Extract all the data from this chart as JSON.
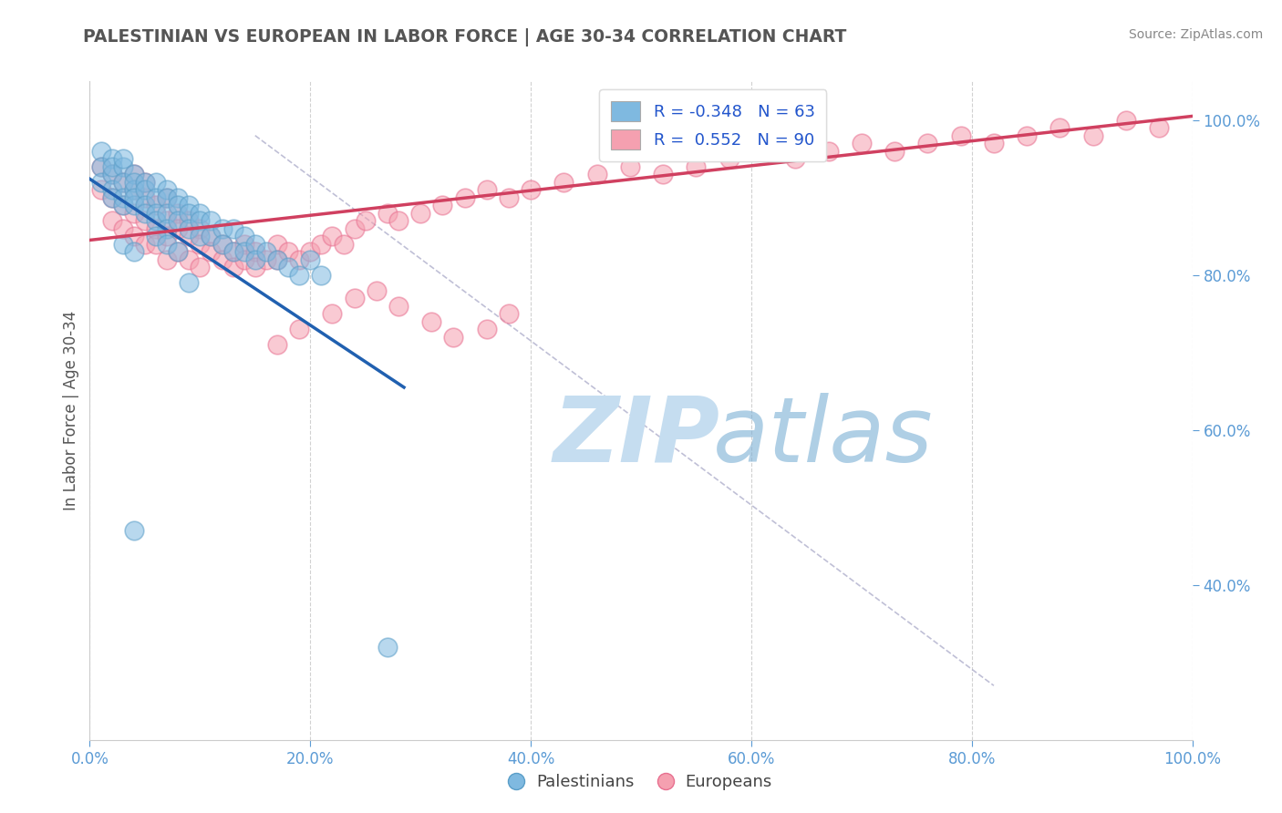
{
  "title": "PALESTINIAN VS EUROPEAN IN LABOR FORCE | AGE 30-34 CORRELATION CHART",
  "source": "Source: ZipAtlas.com",
  "ylabel": "In Labor Force | Age 30-34",
  "xlim": [
    0.0,
    1.0
  ],
  "ylim": [
    0.2,
    1.05
  ],
  "yticks": [
    0.4,
    0.6,
    0.8,
    1.0
  ],
  "xticks": [
    0.0,
    0.2,
    0.4,
    0.6,
    0.8,
    1.0
  ],
  "blue_label": "Palestinians",
  "pink_label": "Europeans",
  "blue_R": -0.348,
  "blue_N": 63,
  "pink_R": 0.552,
  "pink_N": 90,
  "blue_color": "#7fb9e0",
  "pink_color": "#f5a0b0",
  "blue_edge_color": "#5a9ec8",
  "pink_edge_color": "#e87090",
  "blue_line_color": "#2060b0",
  "pink_line_color": "#d04060",
  "title_color": "#555555",
  "grid_color": "#cccccc",
  "tick_label_color": "#5b9bd5",
  "diag_color": "#b0b0cc",
  "blue_line_x": [
    0.0,
    0.285
  ],
  "blue_line_y": [
    0.924,
    0.655
  ],
  "pink_line_x": [
    0.0,
    1.0
  ],
  "pink_line_y": [
    0.845,
    1.005
  ],
  "diag_line_x": [
    0.15,
    0.82
  ],
  "diag_line_y": [
    0.98,
    0.27
  ],
  "blue_pts_x": [
    0.01,
    0.01,
    0.01,
    0.02,
    0.02,
    0.02,
    0.02,
    0.02,
    0.03,
    0.03,
    0.03,
    0.03,
    0.03,
    0.04,
    0.04,
    0.04,
    0.04,
    0.04,
    0.05,
    0.05,
    0.05,
    0.05,
    0.06,
    0.06,
    0.06,
    0.06,
    0.07,
    0.07,
    0.07,
    0.07,
    0.08,
    0.08,
    0.08,
    0.09,
    0.09,
    0.09,
    0.1,
    0.1,
    0.1,
    0.11,
    0.11,
    0.12,
    0.12,
    0.13,
    0.13,
    0.14,
    0.14,
    0.15,
    0.15,
    0.16,
    0.17,
    0.18,
    0.19,
    0.2,
    0.21,
    0.03,
    0.04,
    0.06,
    0.07,
    0.08,
    0.04,
    0.09,
    0.27
  ],
  "blue_pts_y": [
    0.96,
    0.94,
    0.92,
    0.95,
    0.93,
    0.91,
    0.9,
    0.94,
    0.94,
    0.92,
    0.9,
    0.89,
    0.95,
    0.93,
    0.91,
    0.89,
    0.92,
    0.9,
    0.92,
    0.91,
    0.89,
    0.88,
    0.92,
    0.9,
    0.88,
    0.87,
    0.91,
    0.9,
    0.88,
    0.86,
    0.9,
    0.89,
    0.87,
    0.89,
    0.88,
    0.86,
    0.88,
    0.87,
    0.85,
    0.87,
    0.85,
    0.86,
    0.84,
    0.86,
    0.83,
    0.85,
    0.83,
    0.84,
    0.82,
    0.83,
    0.82,
    0.81,
    0.8,
    0.82,
    0.8,
    0.84,
    0.83,
    0.85,
    0.84,
    0.83,
    0.47,
    0.79,
    0.32
  ],
  "pink_pts_x": [
    0.01,
    0.01,
    0.02,
    0.02,
    0.02,
    0.03,
    0.03,
    0.03,
    0.04,
    0.04,
    0.04,
    0.04,
    0.05,
    0.05,
    0.05,
    0.05,
    0.06,
    0.06,
    0.06,
    0.07,
    0.07,
    0.07,
    0.07,
    0.08,
    0.08,
    0.08,
    0.09,
    0.09,
    0.09,
    0.1,
    0.1,
    0.1,
    0.11,
    0.11,
    0.12,
    0.12,
    0.13,
    0.13,
    0.14,
    0.14,
    0.15,
    0.15,
    0.16,
    0.17,
    0.17,
    0.18,
    0.19,
    0.2,
    0.21,
    0.22,
    0.23,
    0.24,
    0.25,
    0.27,
    0.28,
    0.3,
    0.32,
    0.34,
    0.36,
    0.38,
    0.4,
    0.43,
    0.46,
    0.49,
    0.52,
    0.55,
    0.58,
    0.61,
    0.64,
    0.67,
    0.7,
    0.73,
    0.76,
    0.79,
    0.82,
    0.85,
    0.88,
    0.91,
    0.94,
    0.97,
    0.17,
    0.19,
    0.22,
    0.24,
    0.26,
    0.28,
    0.31,
    0.33,
    0.36,
    0.38
  ],
  "pink_pts_y": [
    0.94,
    0.91,
    0.93,
    0.9,
    0.87,
    0.92,
    0.89,
    0.86,
    0.91,
    0.88,
    0.85,
    0.93,
    0.9,
    0.87,
    0.84,
    0.92,
    0.89,
    0.86,
    0.84,
    0.9,
    0.87,
    0.85,
    0.82,
    0.88,
    0.86,
    0.83,
    0.87,
    0.85,
    0.82,
    0.86,
    0.84,
    0.81,
    0.85,
    0.83,
    0.84,
    0.82,
    0.83,
    0.81,
    0.84,
    0.82,
    0.83,
    0.81,
    0.82,
    0.84,
    0.82,
    0.83,
    0.82,
    0.83,
    0.84,
    0.85,
    0.84,
    0.86,
    0.87,
    0.88,
    0.87,
    0.88,
    0.89,
    0.9,
    0.91,
    0.9,
    0.91,
    0.92,
    0.93,
    0.94,
    0.93,
    0.94,
    0.95,
    0.96,
    0.95,
    0.96,
    0.97,
    0.96,
    0.97,
    0.98,
    0.97,
    0.98,
    0.99,
    0.98,
    1.0,
    0.99,
    0.71,
    0.73,
    0.75,
    0.77,
    0.78,
    0.76,
    0.74,
    0.72,
    0.73,
    0.75
  ]
}
